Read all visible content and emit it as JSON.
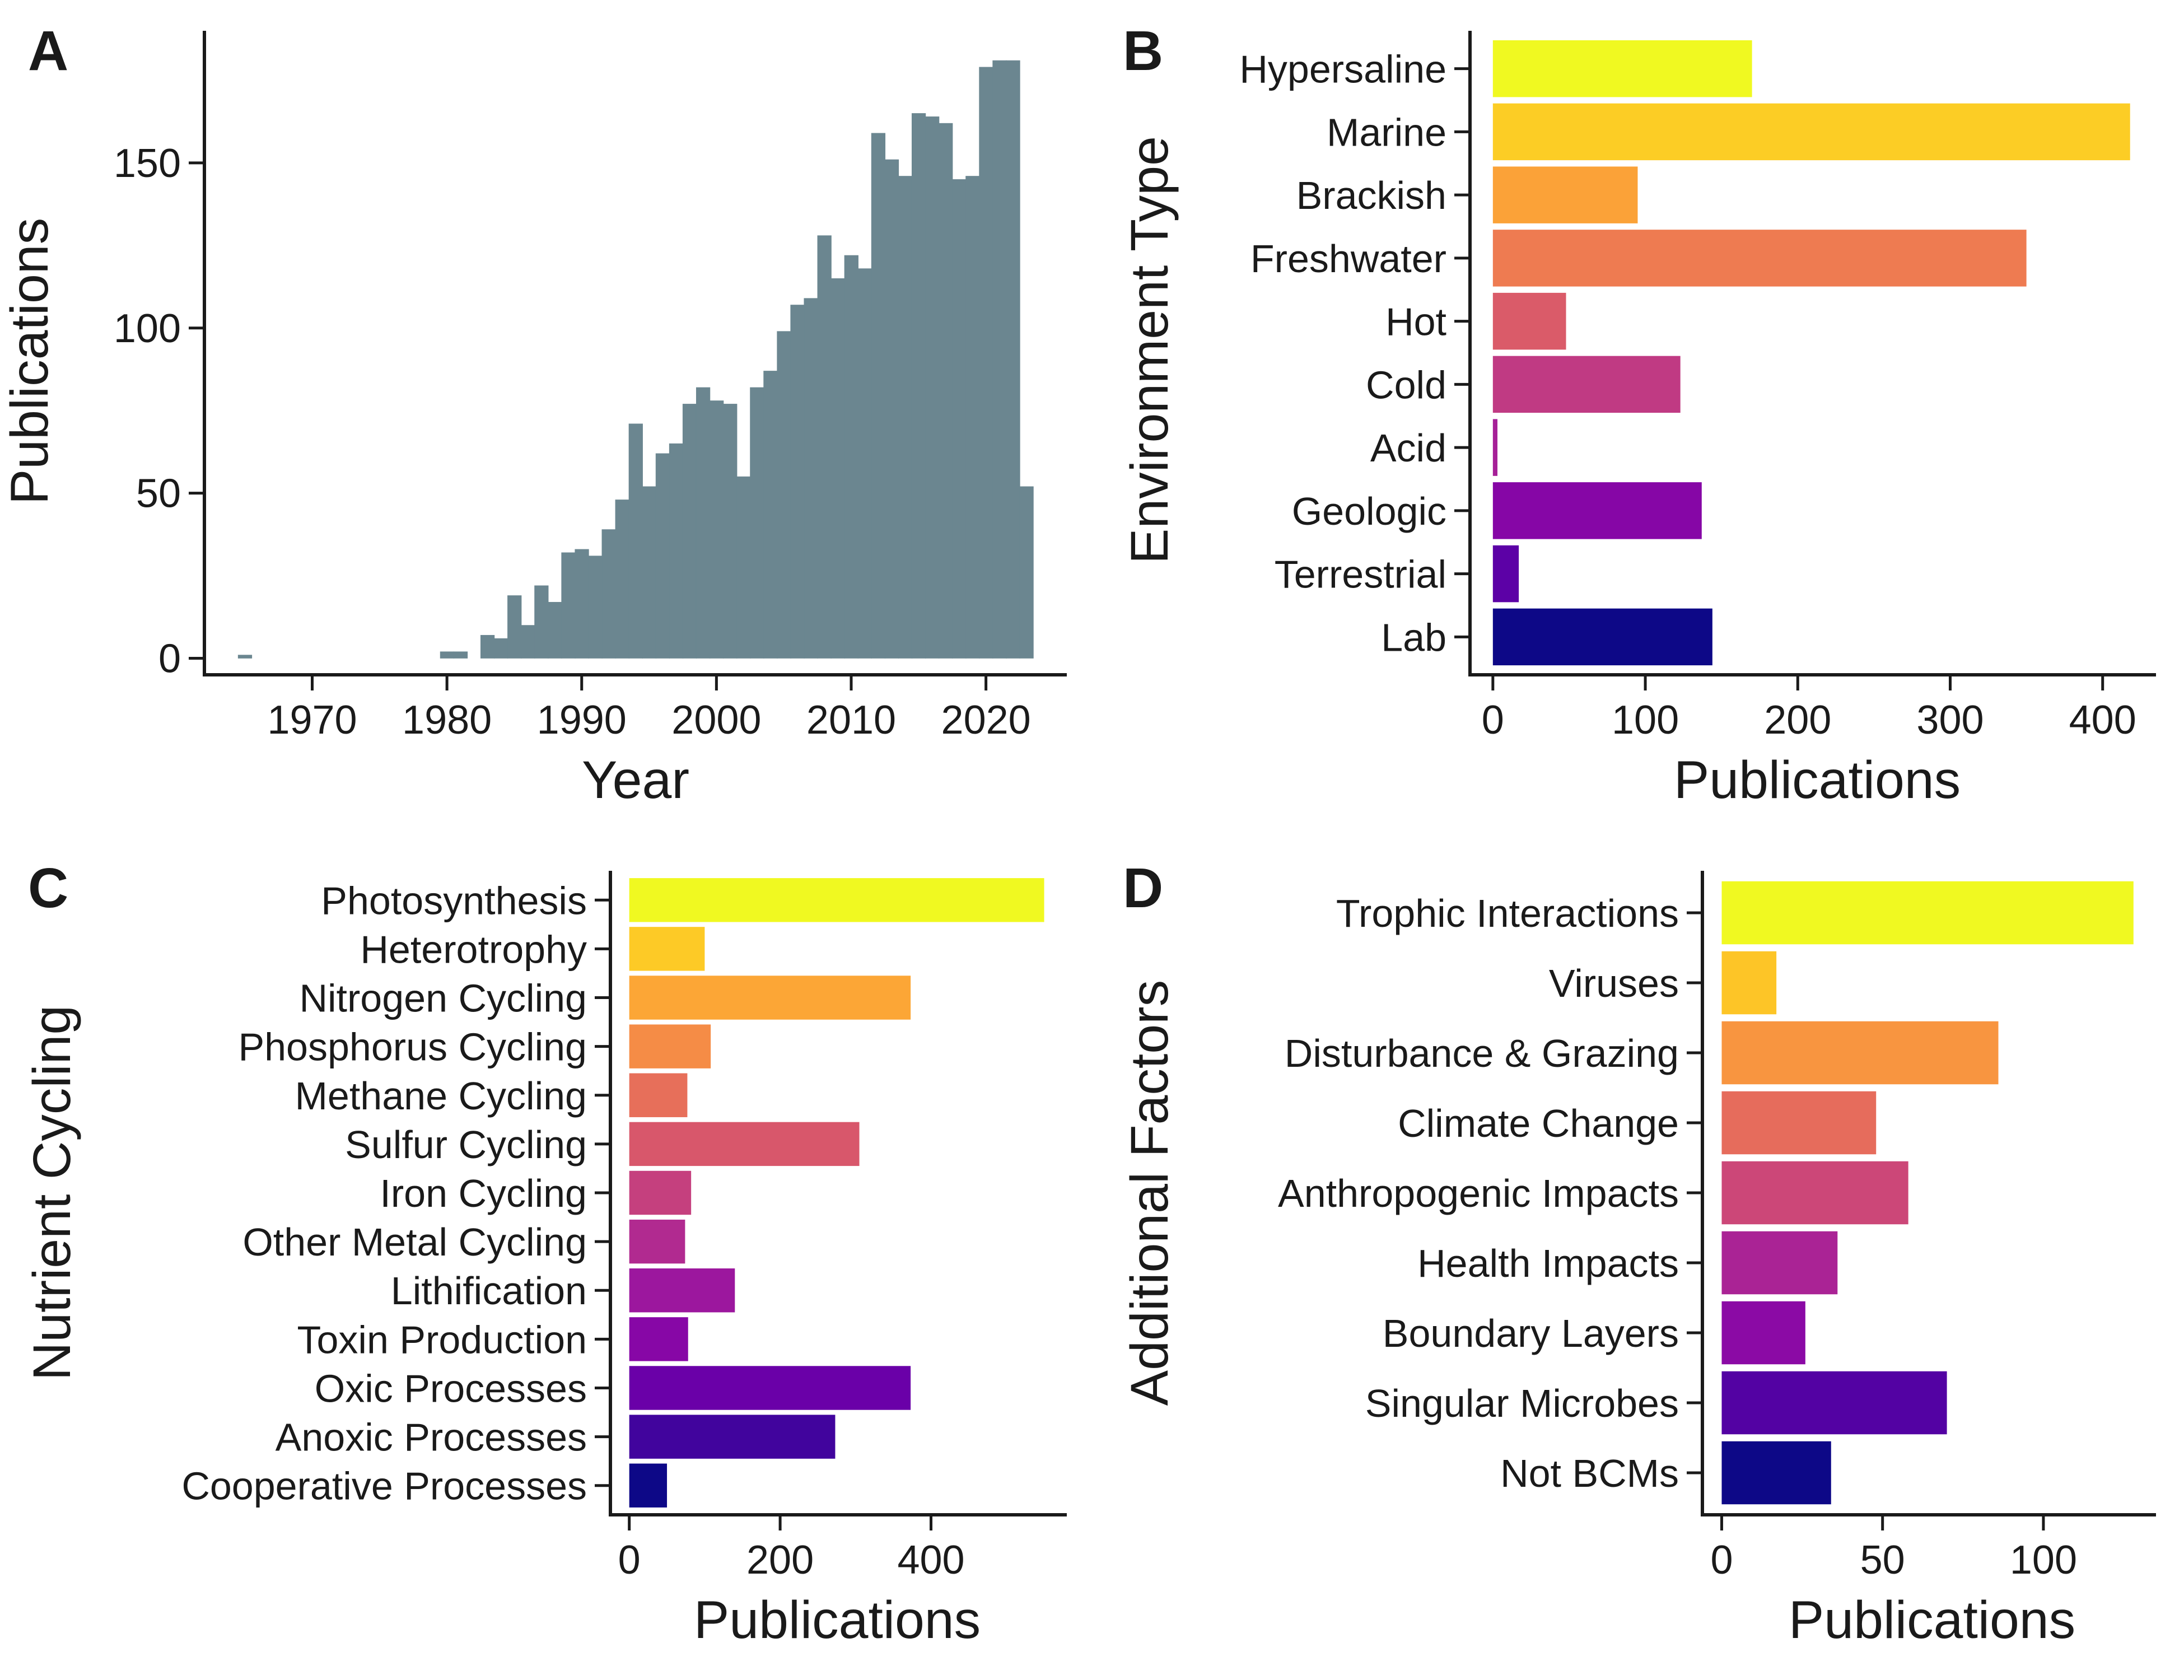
{
  "chart_data": [
    {
      "panel": "A",
      "type": "bar",
      "xlabel": "Year",
      "ylabel": "Publications",
      "xlim": [
        1962,
        2026
      ],
      "ylim": [
        -5,
        190
      ],
      "xticks": [
        1970,
        1980,
        1990,
        2000,
        2010,
        2020
      ],
      "yticks": [
        0,
        50,
        100,
        150
      ],
      "color": "#6b8690",
      "x": [
        1965,
        1980,
        1981,
        1983,
        1984,
        1985,
        1986,
        1987,
        1988,
        1989,
        1990,
        1991,
        1992,
        1993,
        1994,
        1995,
        1996,
        1997,
        1998,
        1999,
        2000,
        2001,
        2002,
        2003,
        2004,
        2005,
        2006,
        2007,
        2008,
        2009,
        2010,
        2011,
        2012,
        2013,
        2014,
        2015,
        2016,
        2017,
        2018,
        2019,
        2020,
        2021,
        2022,
        2023
      ],
      "values": [
        1,
        2,
        2,
        7,
        6,
        19,
        10,
        22,
        17,
        32,
        33,
        31,
        39,
        48,
        71,
        52,
        62,
        65,
        77,
        82,
        78,
        77,
        55,
        82,
        87,
        99,
        107,
        109,
        128,
        115,
        122,
        118,
        159,
        151,
        146,
        165,
        164,
        162,
        145,
        146,
        179,
        181,
        181,
        52
      ]
    },
    {
      "panel": "B",
      "type": "bar",
      "orientation": "horizontal",
      "xlabel": "Publications",
      "ylabel": "Environment Type",
      "xlim": [
        -15,
        435
      ],
      "xticks": [
        0,
        100,
        200,
        300,
        400
      ],
      "categories": [
        "Hypersaline",
        "Marine",
        "Brackish",
        "Freshwater",
        "Hot",
        "Cold",
        "Acid",
        "Geologic",
        "Terrestrial",
        "Lab"
      ],
      "values": [
        170,
        418,
        95,
        350,
        48,
        123,
        3,
        137,
        17,
        144
      ],
      "colors": [
        "#f0f921",
        "#fccd25",
        "#fba238",
        "#ee7b51",
        "#da5b69",
        "#c03a83",
        "#a62098",
        "#8606a6",
        "#5c01a6",
        "#0d0887"
      ]
    },
    {
      "panel": "C",
      "type": "bar",
      "orientation": "horizontal",
      "xlabel": "Publications",
      "ylabel": "Nutrient Cycling",
      "xlim": [
        -25,
        580
      ],
      "xticks": [
        0,
        200,
        400
      ],
      "categories": [
        "Photosynthesis",
        "Heterotrophy",
        "Nitrogen Cycling",
        "Phosphorus Cycling",
        "Methane Cycling",
        "Sulfur Cycling",
        "Iron Cycling",
        "Other Metal Cycling",
        "Lithification",
        "Toxin Production",
        "Oxic Processes",
        "Anoxic Processes",
        "Cooperative Processes"
      ],
      "values": [
        550,
        100,
        373,
        108,
        77,
        305,
        82,
        74,
        140,
        78,
        373,
        273,
        50
      ],
      "colors": [
        "#f0f921",
        "#fdca26",
        "#fca636",
        "#f58c46",
        "#e76f5a",
        "#d8576b",
        "#c5407e",
        "#b12a90",
        "#9c179e",
        "#8707a6",
        "#6a00a8",
        "#41049d",
        "#0d0887"
      ]
    },
    {
      "panel": "D",
      "type": "bar",
      "orientation": "horizontal",
      "xlabel": "Publications",
      "ylabel": "Additional Factors",
      "xlim": [
        -6,
        135
      ],
      "xticks": [
        0,
        50,
        100
      ],
      "categories": [
        "Trophic Interactions",
        "Viruses",
        "Disturbance & Grazing",
        "Climate Change",
        "Anthropogenic Impacts",
        "Health Impacts",
        "Boundary Layers",
        "Singular Microbes",
        "Not BCMs"
      ],
      "values": [
        128,
        17,
        86,
        48,
        58,
        36,
        26,
        70,
        34
      ],
      "colors": [
        "#f0f921",
        "#fdc527",
        "#f89540",
        "#e66c5c",
        "#cc4778",
        "#aa2395",
        "#8b0aa5",
        "#5302a3",
        "#0d0887"
      ]
    }
  ]
}
